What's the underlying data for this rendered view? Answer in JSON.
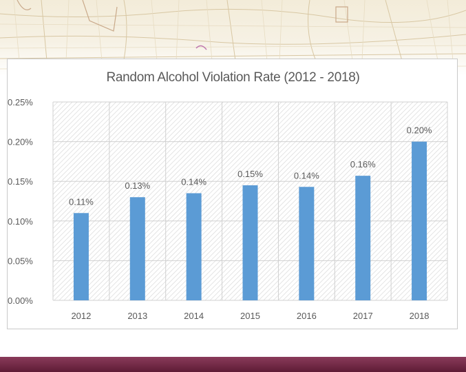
{
  "chart_data": {
    "type": "bar",
    "title": "Random Alcohol Violation Rate (2012 - 2018)",
    "categories": [
      "2012",
      "2013",
      "2014",
      "2015",
      "2016",
      "2017",
      "2018"
    ],
    "values": [
      0.11,
      0.13,
      0.135,
      0.145,
      0.143,
      0.157,
      0.2
    ],
    "data_labels": [
      "0.11%",
      "0.13%",
      "0.14%",
      "0.15%",
      "0.14%",
      "0.16%",
      "0.20%"
    ],
    "ylim": [
      0,
      0.25
    ],
    "yticks": [
      0,
      0.05,
      0.1,
      0.15,
      0.2,
      0.25
    ],
    "ytick_labels": [
      "0.00%",
      "0.05%",
      "0.10%",
      "0.15%",
      "0.20%",
      "0.25%"
    ],
    "xlabel": "",
    "ylabel": "",
    "grid": true,
    "legend": "none",
    "colors": {
      "bar": "#5b9bd5",
      "plot_background_hatch": "#d9d9d9",
      "grid": "#d9d9d9",
      "text": "#595959"
    }
  },
  "decor": {
    "top_banner": "street-map",
    "bottom_band_color": "#6e2442"
  }
}
